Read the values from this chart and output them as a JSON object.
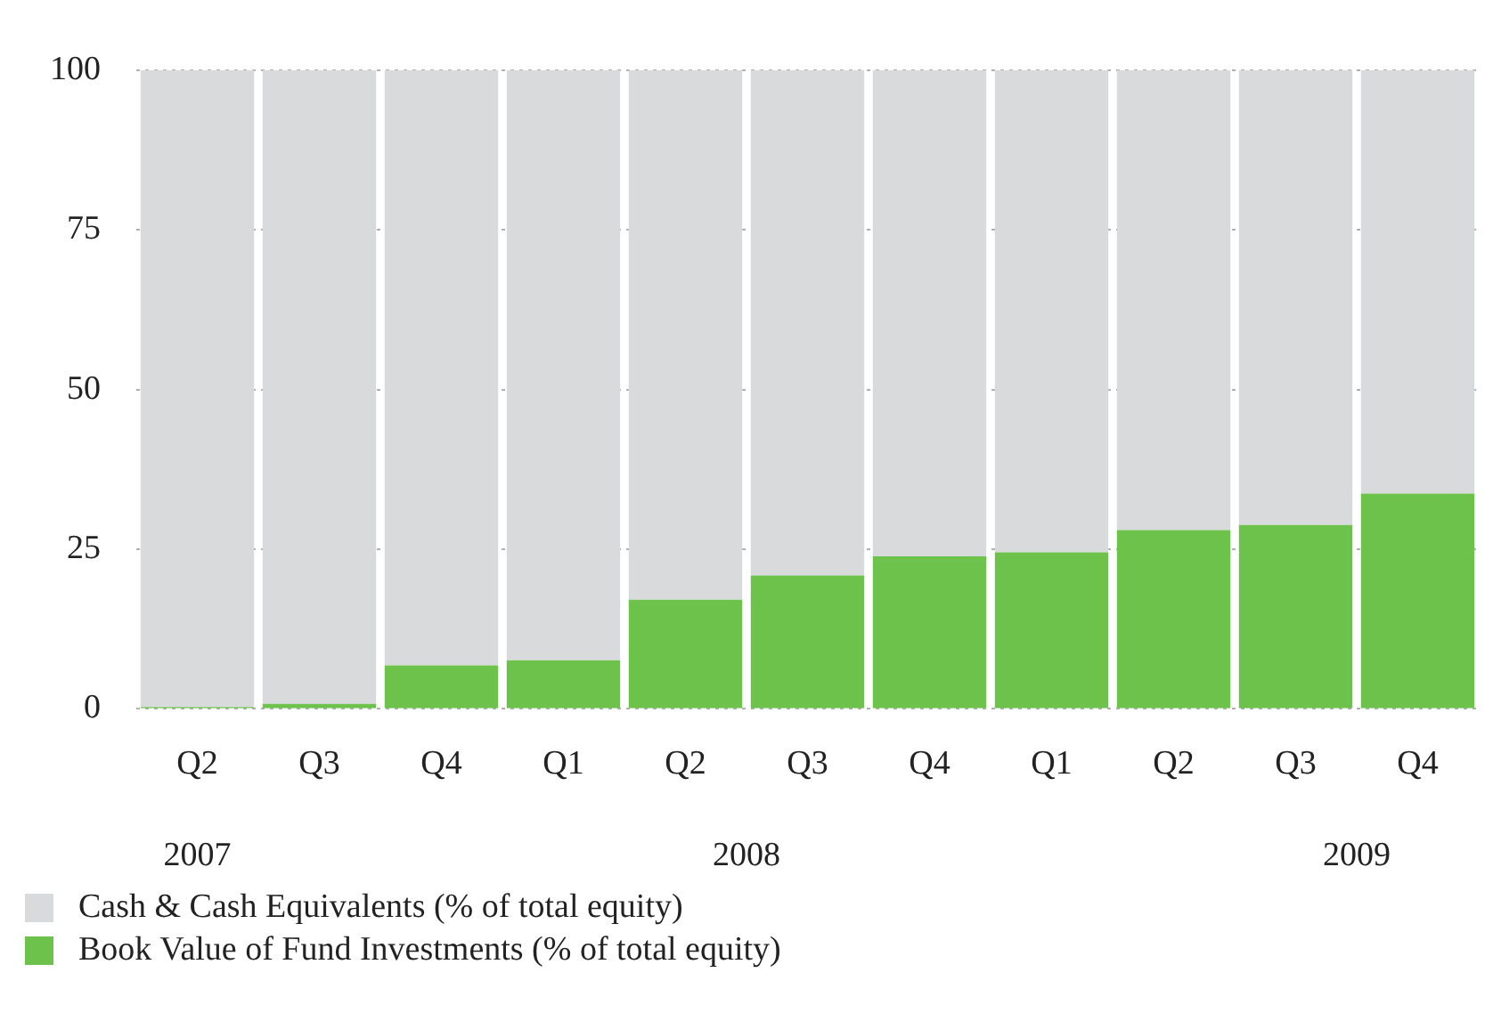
{
  "chart_data": {
    "type": "bar",
    "stacked": true,
    "categories": [
      "Q2",
      "Q3",
      "Q4",
      "Q1",
      "Q2",
      "Q3",
      "Q4",
      "Q1",
      "Q2",
      "Q3",
      "Q4"
    ],
    "series": [
      {
        "name": "Book Value of Fund Investments (% of total equity)",
        "color": "#6cc24a",
        "values": [
          0.3,
          0.8,
          6.8,
          7.6,
          17.1,
          20.9,
          23.9,
          24.5,
          28,
          28.8,
          33.7
        ]
      },
      {
        "name": "Cash & Cash Equivalents (% of total equity)",
        "color": "#d9dadb",
        "values": [
          99.7,
          99.2,
          93.2,
          92.4,
          82.9,
          79.1,
          76.1,
          75.5,
          72,
          71.2,
          66.3
        ]
      }
    ],
    "ylim": [
      0,
      100
    ],
    "yticks": [
      0,
      25,
      50,
      75,
      100
    ],
    "grid": "y",
    "legend": "bottom left",
    "annotations": [
      "2007",
      "2008",
      "2009"
    ]
  }
}
